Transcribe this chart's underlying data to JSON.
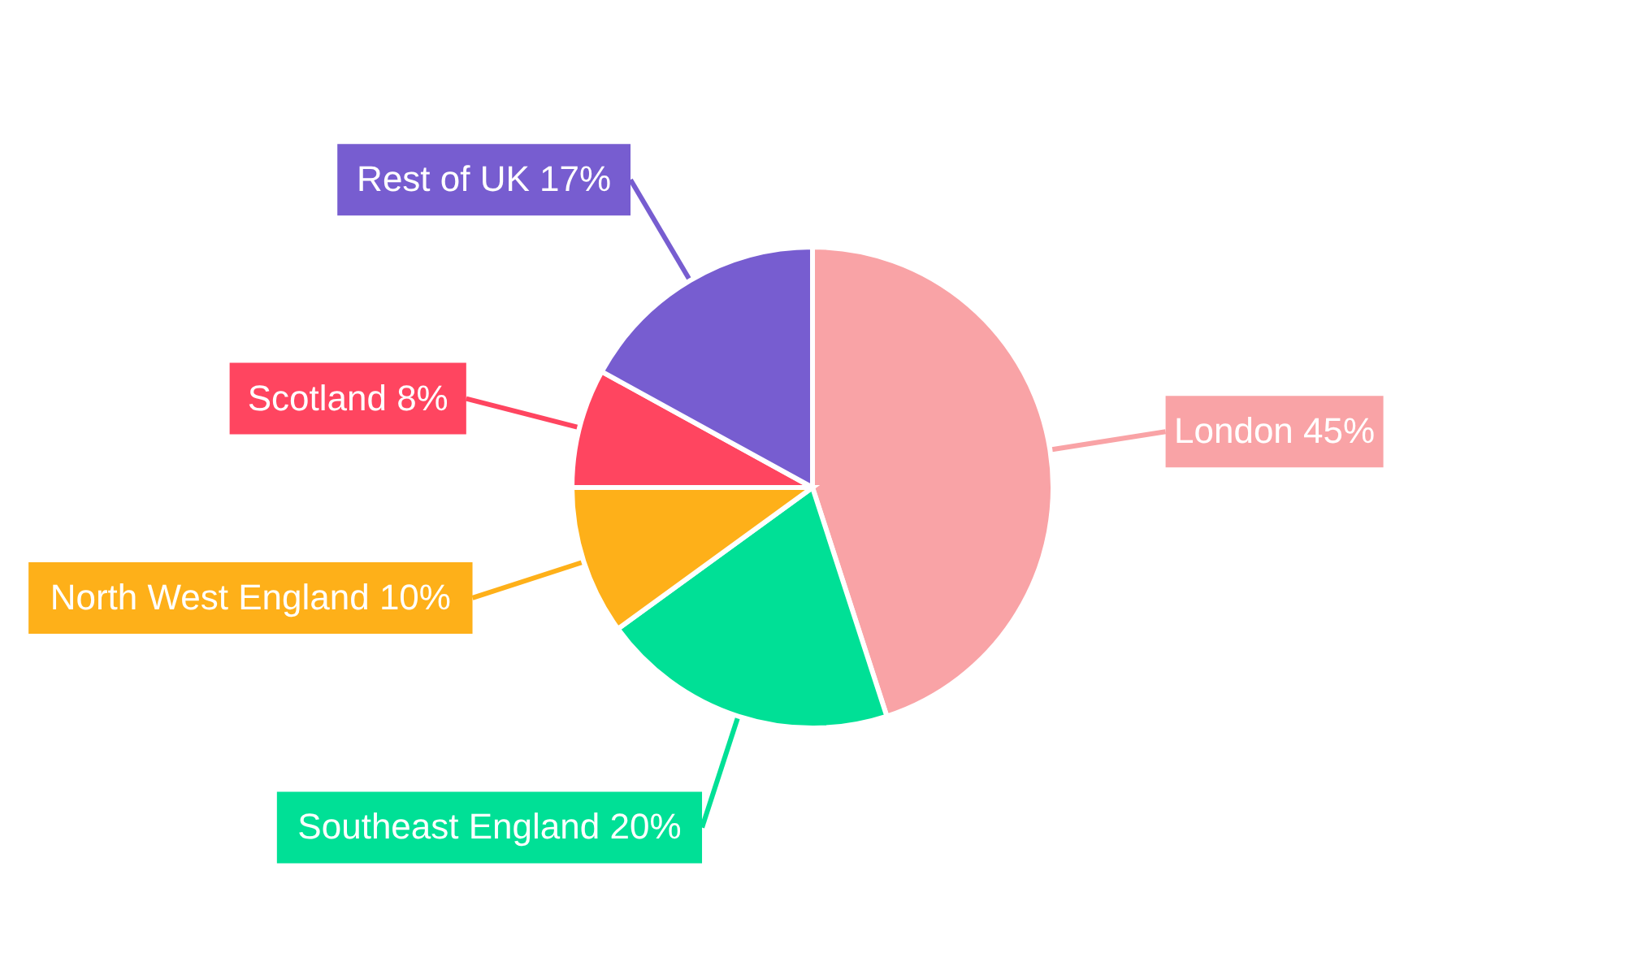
{
  "chart_data": {
    "type": "pie",
    "categories": [
      "London",
      "Southeast England",
      "North West England",
      "Scotland",
      "Rest of UK"
    ],
    "values": [
      45,
      20,
      10,
      8,
      17
    ],
    "value_labels": [
      "45%",
      "20%",
      "10%",
      "8%",
      "17%"
    ],
    "colors": [
      "#f9a3a6",
      "#00e096",
      "#feb019",
      "#ff4560",
      "#775dd0"
    ]
  }
}
